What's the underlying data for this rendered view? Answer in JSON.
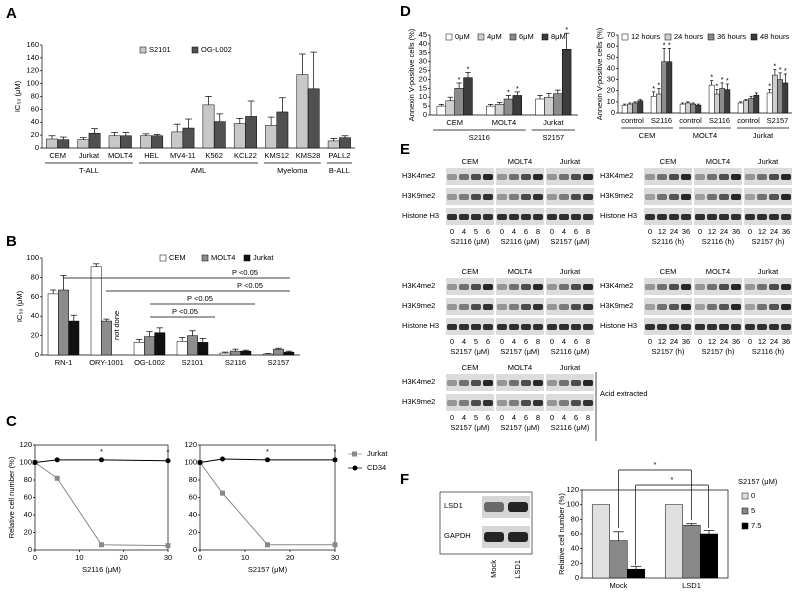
{
  "panel_labels": [
    "A",
    "B",
    "C",
    "D",
    "E",
    "F"
  ],
  "chart_data": [
    {
      "type": "bar",
      "ylabel": "IC₅₀ (μM)",
      "categories": [
        "CEM",
        "Jurkat",
        "MOLT4",
        "HEL",
        "MV4-11",
        "K562",
        "KCL22",
        "KMS12",
        "KMS28",
        "PALL2"
      ],
      "groups": [
        {
          "name": "T-ALL",
          "span": 3
        },
        {
          "name": "AML",
          "span": 4
        },
        {
          "name": "Myeloma",
          "span": 2
        },
        {
          "name": "B-ALL",
          "span": 1
        }
      ],
      "series": [
        {
          "name": "S2101",
          "color": "#c8c8c8",
          "values": [
            14,
            13,
            19,
            19,
            25,
            67,
            38,
            35,
            114,
            11
          ],
          "errors": [
            5,
            3,
            5,
            3,
            12,
            13,
            8,
            13,
            32,
            4
          ]
        },
        {
          "name": "OG-L002",
          "color": "#505050",
          "values": [
            13,
            23,
            19,
            19,
            31,
            41,
            49,
            56,
            92,
            16
          ],
          "errors": [
            4,
            7,
            5,
            2,
            14,
            12,
            24,
            22,
            57,
            3
          ]
        }
      ],
      "ylim": [
        0,
        160
      ],
      "yticks": [
        0,
        20,
        40,
        60,
        80,
        100,
        120,
        140,
        160
      ]
    },
    {
      "type": "bar",
      "ylabel": "IC₅₀ (μM)",
      "categories": [
        "RN-1",
        "ORY-1001",
        "OG-L002",
        "S2101",
        "S2116",
        "S2157"
      ],
      "series": [
        {
          "name": "CEM",
          "color": "#ffffff",
          "values": [
            63,
            91,
            13,
            14,
            2,
            1
          ],
          "errors": [
            4,
            3,
            3,
            4,
            1,
            0.5
          ]
        },
        {
          "name": "MOLT4",
          "color": "#8c8c8c",
          "values": [
            67,
            35,
            19,
            20,
            4,
            6
          ],
          "errors": [
            15,
            2,
            5,
            5,
            2,
            1
          ]
        },
        {
          "name": "Jurkat",
          "color": "#111111",
          "values": [
            35,
            null,
            23,
            13,
            4,
            3
          ],
          "errors": [
            6,
            null,
            5,
            4,
            1,
            1
          ]
        }
      ],
      "annotations": [
        "not done",
        "P <0.05",
        "P <0.05",
        "P <0.05",
        "P <0.05"
      ],
      "ylim": [
        0,
        100
      ],
      "yticks": [
        0,
        20,
        40,
        60,
        80,
        100
      ]
    },
    {
      "type": "line",
      "ylabel": "Relative cell number (%)",
      "xlabel": "S2116 (μM)",
      "x": [
        0,
        5,
        15,
        30
      ],
      "series": [
        {
          "color": "#888888",
          "marker": "square",
          "values": [
            100,
            82,
            6,
            5
          ]
        },
        {
          "color": "#000000",
          "marker": "circle",
          "values": [
            100,
            103,
            103,
            102
          ],
          "significance": [
            null,
            null,
            "*",
            "*"
          ]
        }
      ],
      "xlim": [
        0,
        30
      ],
      "xticks": [
        0,
        10,
        20,
        30
      ],
      "ylim": [
        0,
        120
      ],
      "yticks": [
        0,
        20,
        40,
        60,
        80,
        100,
        120
      ]
    },
    {
      "type": "line",
      "xlabel": "S2157 (μM)",
      "x": [
        0,
        5,
        15,
        30
      ],
      "series": [
        {
          "name": "Jurkat",
          "color": "#888888",
          "marker": "square",
          "values": [
            100,
            65,
            6,
            6
          ]
        },
        {
          "name": "CD34",
          "color": "#000000",
          "marker": "circle",
          "values": [
            100,
            104,
            103,
            103
          ],
          "significance": [
            null,
            null,
            "*",
            "*"
          ]
        }
      ],
      "xlim": [
        0,
        30
      ],
      "xticks": [
        0,
        10,
        20,
        30
      ],
      "ylim": [
        0,
        120
      ],
      "yticks": [
        0,
        20,
        40,
        60,
        80,
        100,
        120
      ]
    },
    {
      "type": "bar",
      "ylabel": "Annexin V-positive cells (%)",
      "categories": [
        "CEM",
        "MOLT4",
        "Jurkat"
      ],
      "groups": [
        {
          "name": "S2116",
          "span": 2
        },
        {
          "name": "S2157",
          "span": 1
        }
      ],
      "series": [
        {
          "name": "0μM",
          "color": "#ffffff",
          "values": [
            5,
            5,
            9
          ],
          "errors": [
            1,
            1,
            2
          ]
        },
        {
          "name": "4μM",
          "color": "#cfcfcf",
          "values": [
            8,
            6,
            10
          ],
          "errors": [
            2,
            1,
            2
          ]
        },
        {
          "name": "6μM",
          "color": "#8c8c8c",
          "values": [
            15,
            9,
            12
          ],
          "errors": [
            3,
            2,
            2
          ],
          "significance": [
            "*",
            "*",
            null
          ]
        },
        {
          "name": "8μM",
          "color": "#3c3c3c",
          "values": [
            21,
            11,
            37
          ],
          "errors": [
            3,
            2,
            9
          ],
          "significance": [
            "*",
            "*",
            "*"
          ]
        }
      ],
      "ylim": [
        0,
        45
      ],
      "yticks": [
        0,
        5,
        10,
        15,
        20,
        25,
        30,
        35,
        40,
        45
      ]
    },
    {
      "type": "bar",
      "ylabel": "Annexin V-positive cells (%)",
      "categories": [
        "control",
        "S2116",
        "control",
        "S2116",
        "control",
        "S2157"
      ],
      "groups": [
        {
          "name": "CEM",
          "span": 2
        },
        {
          "name": "MOLT4",
          "span": 2
        },
        {
          "name": "Jurkat",
          "span": 2
        }
      ],
      "series": [
        {
          "name": "12 hours",
          "color": "#ffffff",
          "values": [
            7,
            15,
            8,
            25,
            9,
            18
          ],
          "errors": [
            1,
            4,
            1,
            4,
            1,
            3
          ],
          "significance": [
            null,
            "*",
            null,
            "*",
            null,
            "*"
          ]
        },
        {
          "name": "24 hours",
          "color": "#cfcfcf",
          "values": [
            8,
            17,
            9,
            17,
            11,
            34
          ],
          "errors": [
            1,
            5,
            1,
            4,
            1,
            5
          ],
          "significance": [
            null,
            "*",
            null,
            "*",
            null,
            "*"
          ]
        },
        {
          "name": "36 hours",
          "color": "#8c8c8c",
          "values": [
            9,
            46,
            8,
            22,
            13,
            30
          ],
          "errors": [
            1,
            12,
            1,
            5,
            2,
            6
          ],
          "significance": [
            null,
            "*",
            null,
            "*",
            null,
            "*"
          ]
        },
        {
          "name": "48 hours",
          "color": "#3c3c3c",
          "values": [
            11,
            46,
            7,
            21,
            16,
            27
          ],
          "errors": [
            1,
            12,
            1,
            5,
            2,
            8
          ],
          "significance": [
            null,
            "*",
            null,
            "*",
            null,
            "*"
          ]
        }
      ],
      "ylim": [
        0,
        70
      ],
      "yticks": [
        0,
        10,
        20,
        30,
        40,
        50,
        60,
        70
      ]
    },
    {
      "type": "bar",
      "ylabel": "Relative cell number (%)",
      "legend_title": "S2157 (μM)",
      "categories": [
        "Mock",
        "LSD1"
      ],
      "series": [
        {
          "name": "0",
          "color": "#e0e0e0",
          "values": [
            100,
            100
          ]
        },
        {
          "name": "5",
          "color": "#888888",
          "values": [
            51,
            72
          ],
          "errors": [
            12,
            2
          ]
        },
        {
          "name": "7.5",
          "color": "#000000",
          "values": [
            12,
            60
          ],
          "errors": [
            4,
            5
          ]
        }
      ],
      "annotations": [
        "*",
        "*"
      ],
      "ylim": [
        0,
        120
      ],
      "yticks": [
        0,
        20,
        40,
        60,
        80,
        100,
        120
      ]
    }
  ],
  "blots": [
    {
      "rows": [
        "H3K4me2",
        "H3K9me2",
        "Histone H3"
      ],
      "columns": [
        {
          "name": "CEM",
          "lanes": [
            "0",
            "4",
            "5",
            "6"
          ],
          "label": "S2116 (μM)"
        },
        {
          "name": "MOLT4",
          "lanes": [
            "0",
            "4",
            "6",
            "8"
          ],
          "label": "S2116 (μM)"
        },
        {
          "name": "Jurkat",
          "lanes": [
            "0",
            "4",
            "6",
            "8"
          ],
          "label": "S2157 (μM)"
        }
      ]
    },
    {
      "rows": [
        "H3K4me2",
        "H3K9me2",
        "Histone H3"
      ],
      "columns": [
        {
          "name": "CEM",
          "lanes": [
            "0",
            "12",
            "24",
            "36"
          ],
          "label": "S2116 (h)"
        },
        {
          "name": "MOLT4",
          "lanes": [
            "0",
            "12",
            "24",
            "36"
          ],
          "label": "S2116 (h)"
        },
        {
          "name": "Jurkat",
          "lanes": [
            "0",
            "12",
            "24",
            "36"
          ],
          "label": "S2157 (h)"
        }
      ]
    },
    {
      "rows": [
        "H3K4me2",
        "H3K9me2",
        "Histone H3"
      ],
      "columns": [
        {
          "name": "CEM",
          "lanes": [
            "0",
            "4",
            "5",
            "6"
          ],
          "label": "S2157 (μM)"
        },
        {
          "name": "MOLT4",
          "lanes": [
            "0",
            "4",
            "6",
            "8"
          ],
          "label": "S2157 (μM)"
        },
        {
          "name": "Jurkat",
          "lanes": [
            "0",
            "4",
            "6",
            "8"
          ],
          "label": "S2116 (μM)"
        }
      ]
    },
    {
      "rows": [
        "H3K4me2",
        "H3K9me2",
        "Histone H3"
      ],
      "columns": [
        {
          "name": "CEM",
          "lanes": [
            "0",
            "12",
            "24",
            "36"
          ],
          "label": "S2157 (h)"
        },
        {
          "name": "MOLT4",
          "lanes": [
            "0",
            "12",
            "24",
            "36"
          ],
          "label": "S2157 (h)"
        },
        {
          "name": "Jurkat",
          "lanes": [
            "0",
            "12",
            "24",
            "36"
          ],
          "label": "S2116 (h)"
        }
      ]
    },
    {
      "rows": [
        "H3K4me2",
        "H3K9me2"
      ],
      "note": "Acid extracted",
      "columns": [
        {
          "name": "CEM",
          "lanes": [
            "0",
            "4",
            "5",
            "6"
          ],
          "label": "S2157 (μM)"
        },
        {
          "name": "MOLT4",
          "lanes": [
            "0",
            "4",
            "6",
            "8"
          ],
          "label": "S2157 (μM)"
        },
        {
          "name": "Jurkat",
          "lanes": [
            "0",
            "4",
            "6",
            "8"
          ],
          "label": "S2116 (μM)"
        }
      ]
    }
  ],
  "lsd1_blot": {
    "rows": [
      "LSD1",
      "GAPDH"
    ],
    "lanes": [
      "Mock",
      "LSD1"
    ]
  }
}
